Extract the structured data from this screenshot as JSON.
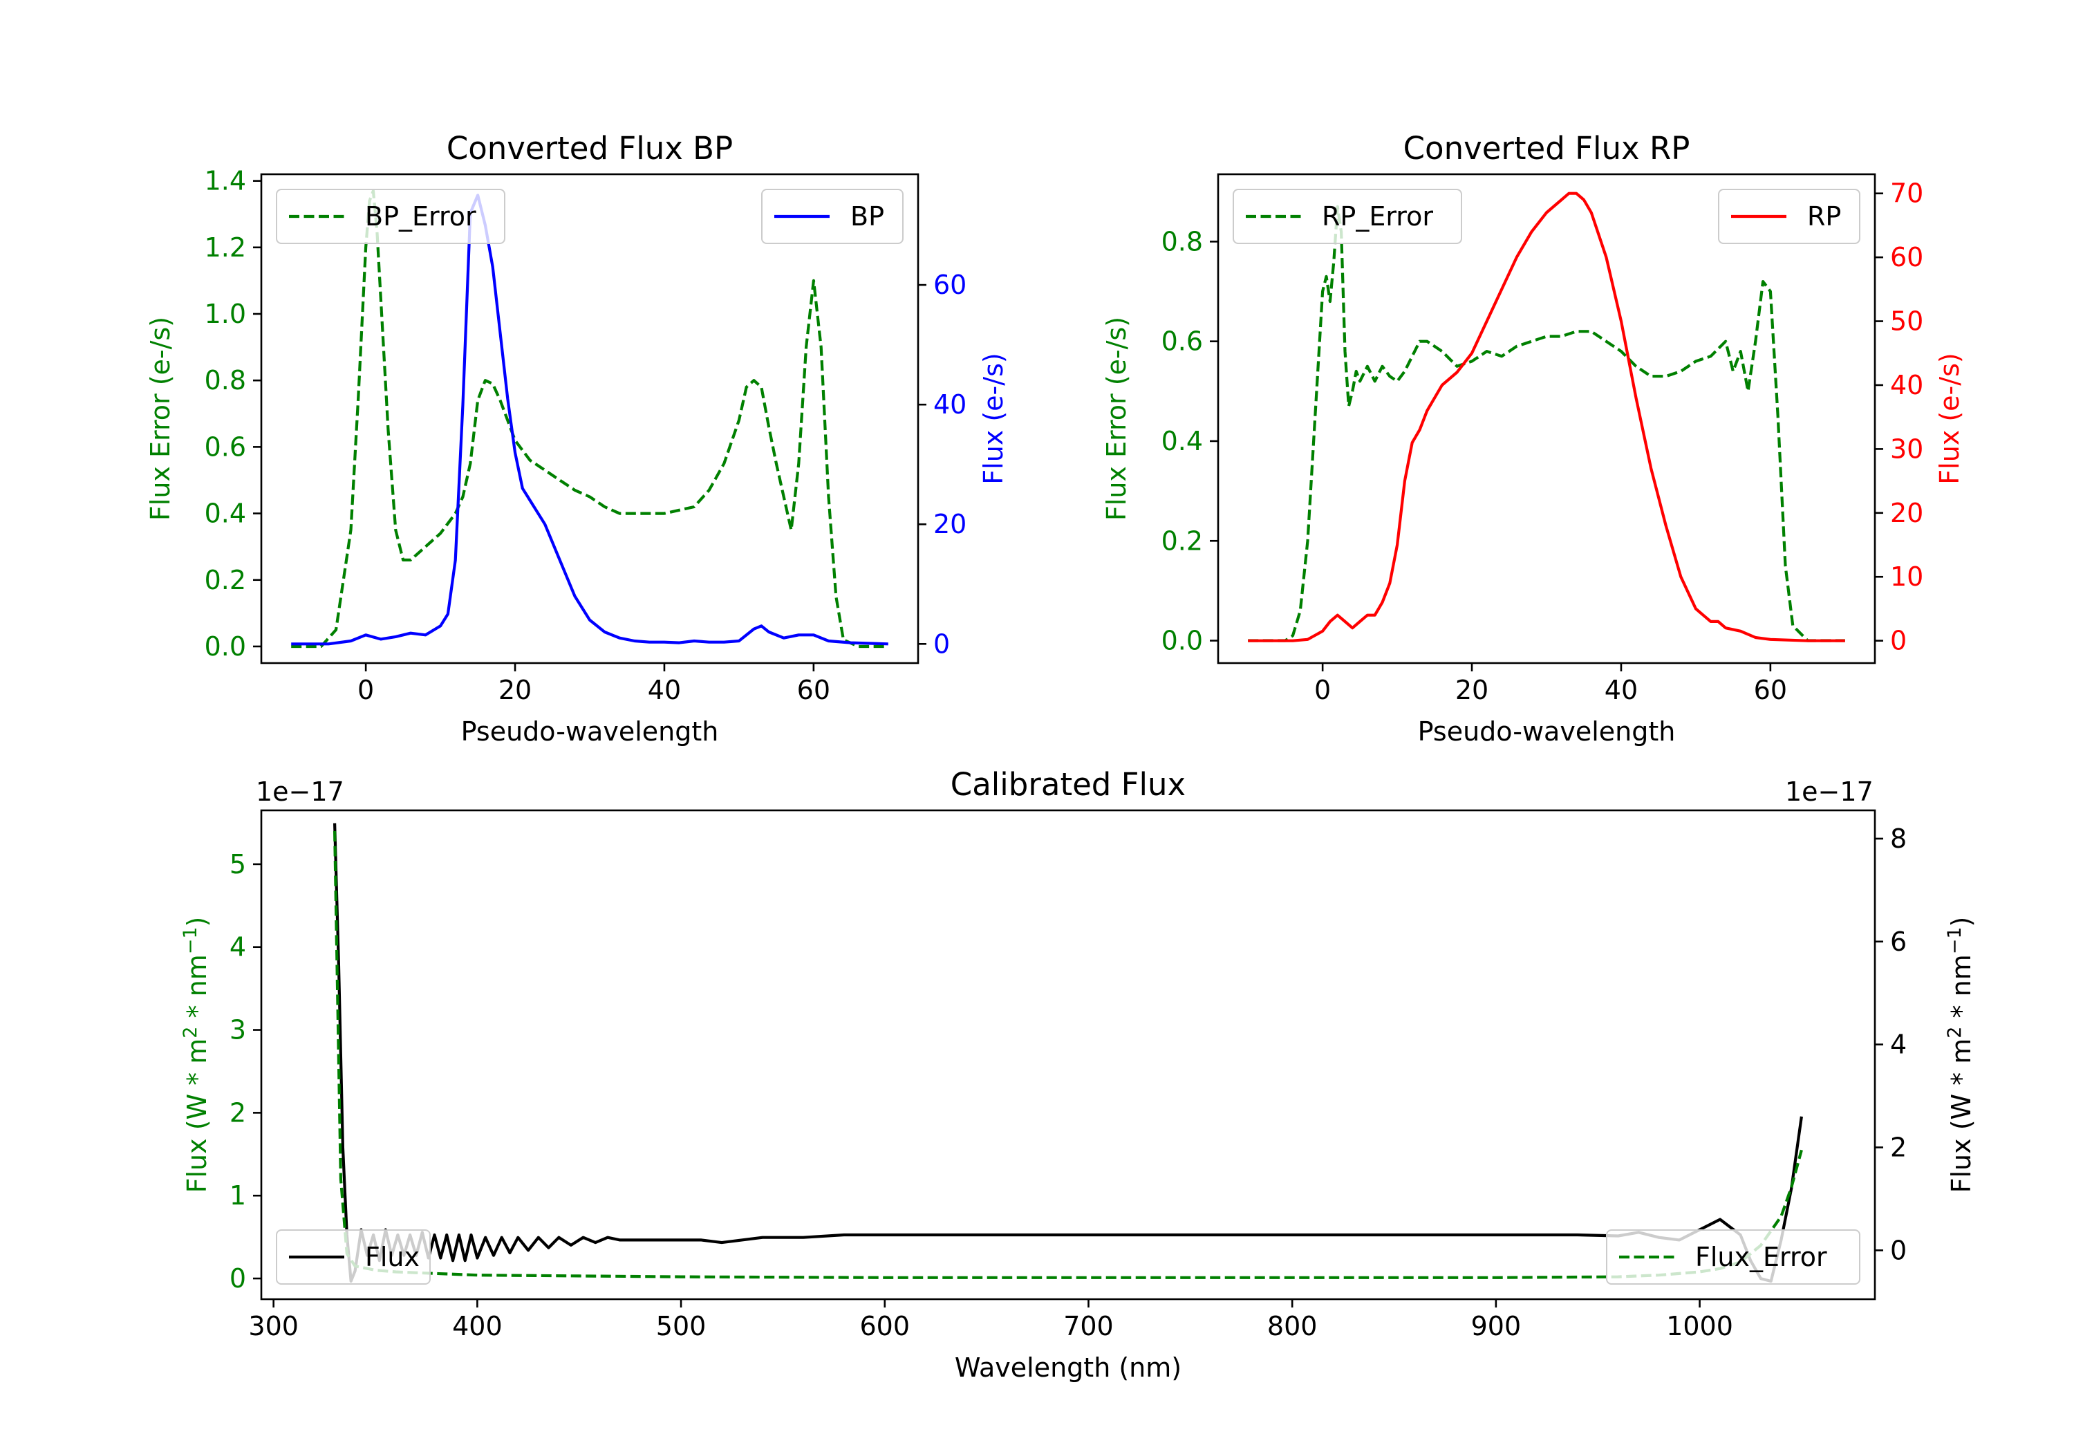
{
  "figure": {
    "background": "#ffffff",
    "colors": {
      "green": "#008000",
      "blue": "#0000ff",
      "red": "#ff0000",
      "black": "#000000"
    }
  },
  "chart_data": [
    {
      "id": "bp",
      "type": "line",
      "title": "Converted Flux BP",
      "xlabel": "Pseudo-wavelength",
      "ylabel_left": "Flux Error (e-/s)",
      "ylabel_right": "Flux (e-/s)",
      "xlim": [
        -14,
        74
      ],
      "ylim_left": [
        -0.05,
        1.42
      ],
      "ylim_right": [
        -3.2,
        78.5
      ],
      "xticks": [
        0,
        20,
        40,
        60
      ],
      "yticks_left": [
        0.0,
        0.2,
        0.4,
        0.6,
        0.8,
        1.0,
        1.2,
        1.4
      ],
      "yticks_left_labels": [
        "0.0",
        "0.2",
        "0.4",
        "0.6",
        "0.8",
        "1.0",
        "1.2",
        "1.4"
      ],
      "yticks_right": [
        0,
        20,
        40,
        60
      ],
      "legend_left": "top-left",
      "legend_right": "top-right",
      "series": [
        {
          "name": "BP_Error",
          "axis": "left",
          "color": "#008000",
          "style": "dashed",
          "x": [
            -10,
            -6,
            -4,
            -2,
            -1,
            0,
            0.5,
            1,
            1.5,
            2,
            3,
            4,
            5,
            6,
            8,
            10,
            12,
            13,
            14,
            15,
            16,
            17,
            18,
            19,
            20,
            22,
            24,
            26,
            28,
            30,
            32,
            34,
            36,
            38,
            40,
            42,
            44,
            46,
            48,
            50,
            51,
            52,
            53,
            54,
            55,
            56,
            57,
            58,
            59,
            60,
            61,
            62,
            63,
            64,
            66,
            70
          ],
          "values": [
            0,
            0,
            0.05,
            0.35,
            0.75,
            1.2,
            1.34,
            1.37,
            1.25,
            1.05,
            0.65,
            0.35,
            0.26,
            0.26,
            0.3,
            0.34,
            0.4,
            0.45,
            0.55,
            0.74,
            0.8,
            0.79,
            0.74,
            0.68,
            0.62,
            0.56,
            0.53,
            0.5,
            0.47,
            0.45,
            0.42,
            0.4,
            0.4,
            0.4,
            0.4,
            0.41,
            0.42,
            0.47,
            0.55,
            0.68,
            0.78,
            0.8,
            0.78,
            0.66,
            0.55,
            0.45,
            0.35,
            0.55,
            0.9,
            1.1,
            0.9,
            0.45,
            0.15,
            0.02,
            0,
            0
          ]
        },
        {
          "name": "BP",
          "axis": "right",
          "color": "#0000ff",
          "style": "solid",
          "x": [
            -10,
            -5,
            -2,
            0,
            2,
            4,
            6,
            8,
            10,
            11,
            12,
            13,
            14,
            15,
            16,
            17,
            18,
            19,
            20,
            21,
            22,
            24,
            26,
            28,
            30,
            32,
            34,
            36,
            38,
            40,
            42,
            44,
            46,
            48,
            50,
            52,
            53,
            54,
            56,
            58,
            60,
            62,
            65,
            70
          ],
          "values": [
            0,
            0,
            0.5,
            1.5,
            0.8,
            1.2,
            1.8,
            1.5,
            3,
            5,
            14,
            40,
            72,
            75,
            70,
            63,
            52,
            41,
            32,
            26,
            24,
            20,
            14,
            8,
            4,
            2,
            1,
            0.5,
            0.3,
            0.3,
            0.2,
            0.5,
            0.3,
            0.3,
            0.5,
            2.5,
            3,
            2,
            1,
            1.5,
            1.5,
            0.5,
            0.2,
            0
          ]
        }
      ]
    },
    {
      "id": "rp",
      "type": "line",
      "title": "Converted Flux RP",
      "xlabel": "Pseudo-wavelength",
      "ylabel_left": "Flux Error (e-/s)",
      "ylabel_right": "Flux (e-/s)",
      "xlim": [
        -14,
        74
      ],
      "ylim_left": [
        -0.045,
        0.935
      ],
      "ylim_right": [
        -3.5,
        73.0
      ],
      "xticks": [
        0,
        20,
        40,
        60
      ],
      "yticks_left": [
        0.0,
        0.2,
        0.4,
        0.6,
        0.8
      ],
      "yticks_left_labels": [
        "0.0",
        "0.2",
        "0.4",
        "0.6",
        "0.8"
      ],
      "yticks_right": [
        0,
        10,
        20,
        30,
        40,
        50,
        60,
        70
      ],
      "legend_left": "top-left",
      "legend_right": "top-right",
      "series": [
        {
          "name": "RP_Error",
          "axis": "left",
          "color": "#008000",
          "style": "dashed",
          "x": [
            -10,
            -5,
            -4,
            -3,
            -2,
            -1,
            0,
            0.5,
            1,
            1.5,
            2,
            2.5,
            3,
            3.5,
            4,
            4.5,
            5,
            6,
            7,
            8,
            9,
            10,
            11,
            12,
            13,
            14,
            16,
            18,
            20,
            22,
            24,
            26,
            28,
            30,
            32,
            34,
            36,
            38,
            40,
            42,
            44,
            46,
            48,
            50,
            52,
            54,
            55,
            56,
            57,
            58,
            59,
            60,
            61,
            62,
            63,
            65,
            70
          ],
          "values": [
            0,
            0,
            0.01,
            0.06,
            0.2,
            0.45,
            0.7,
            0.73,
            0.68,
            0.76,
            0.87,
            0.82,
            0.58,
            0.47,
            0.5,
            0.54,
            0.52,
            0.55,
            0.52,
            0.55,
            0.53,
            0.52,
            0.54,
            0.57,
            0.6,
            0.6,
            0.58,
            0.55,
            0.56,
            0.58,
            0.57,
            0.59,
            0.6,
            0.61,
            0.61,
            0.62,
            0.62,
            0.6,
            0.58,
            0.55,
            0.53,
            0.53,
            0.54,
            0.56,
            0.57,
            0.6,
            0.54,
            0.58,
            0.5,
            0.6,
            0.72,
            0.7,
            0.45,
            0.15,
            0.03,
            0,
            0
          ]
        },
        {
          "name": "RP",
          "axis": "right",
          "color": "#ff0000",
          "style": "solid",
          "x": [
            -10,
            -4,
            -2,
            0,
            1,
            2,
            3,
            4,
            5,
            6,
            7,
            8,
            9,
            10,
            11,
            12,
            13,
            14,
            16,
            18,
            20,
            22,
            24,
            26,
            28,
            30,
            32,
            33,
            34,
            35,
            36,
            38,
            40,
            42,
            44,
            46,
            48,
            50,
            51,
            52,
            53,
            54,
            56,
            58,
            60,
            65,
            70
          ],
          "values": [
            0,
            0,
            0.2,
            1.5,
            3,
            4,
            3,
            2,
            3,
            4,
            4,
            6,
            9,
            15,
            25,
            31,
            33,
            36,
            40,
            42,
            45,
            50,
            55,
            60,
            64,
            67,
            69,
            70,
            70,
            69,
            67,
            60,
            50,
            38,
            27,
            18,
            10,
            5,
            4,
            3,
            3,
            2,
            1.5,
            0.5,
            0.2,
            0,
            0
          ]
        }
      ]
    },
    {
      "id": "calibrated",
      "type": "line",
      "title": "Calibrated Flux",
      "xlabel": "Wavelength (nm)",
      "ylabel_left": "Flux (W * m",
      "ylabel_left_sup1": "2",
      "ylabel_left_mid": " * nm",
      "ylabel_left_sup2": "−1",
      "ylabel_left_end": ")",
      "ylabel_right": "Flux (W * m",
      "ylabel_right_sup1": "2",
      "ylabel_right_mid": " * nm",
      "ylabel_right_sup2": "−1",
      "ylabel_right_end": ")",
      "offset_left": "1e−17",
      "offset_right": "1e−17",
      "xlim": [
        294,
        1086
      ],
      "ylim_left": [
        -0.25,
        5.65
      ],
      "ylim_right": [
        -0.95,
        8.55
      ],
      "xticks": [
        300,
        400,
        500,
        600,
        700,
        800,
        900,
        1000
      ],
      "yticks_left": [
        0,
        1,
        2,
        3,
        4,
        5
      ],
      "yticks_right": [
        0,
        2,
        4,
        6,
        8
      ],
      "legend_left": "bottom-left",
      "legend_right": "bottom-right",
      "series": [
        {
          "name": "Flux",
          "axis": "right",
          "color": "#000000",
          "style": "solid",
          "unit_scale": "1e-17",
          "x": [
            330,
            332,
            334,
            336,
            338,
            340,
            343,
            346,
            349,
            352,
            355,
            358,
            361,
            364,
            367,
            370,
            373,
            376,
            379,
            382,
            385,
            388,
            391,
            394,
            397,
            400,
            404,
            408,
            412,
            416,
            420,
            425,
            430,
            435,
            440,
            446,
            452,
            458,
            464,
            470,
            480,
            490,
            500,
            510,
            520,
            540,
            560,
            580,
            600,
            620,
            640,
            660,
            680,
            700,
            720,
            740,
            760,
            780,
            800,
            820,
            840,
            860,
            880,
            900,
            920,
            940,
            960,
            970,
            980,
            990,
            1000,
            1010,
            1020,
            1025,
            1030,
            1035,
            1040,
            1045,
            1050
          ],
          "values": [
            8.3,
            5.5,
            2.0,
            0.3,
            -0.6,
            -0.4,
            0.4,
            -0.1,
            0.3,
            -0.2,
            0.4,
            -0.1,
            0.3,
            -0.1,
            0.3,
            -0.1,
            0.35,
            -0.15,
            0.3,
            -0.15,
            0.3,
            -0.2,
            0.3,
            -0.2,
            0.3,
            -0.15,
            0.25,
            -0.1,
            0.25,
            -0.05,
            0.25,
            0.0,
            0.25,
            0.05,
            0.25,
            0.1,
            0.25,
            0.15,
            0.25,
            0.2,
            0.2,
            0.2,
            0.2,
            0.2,
            0.15,
            0.25,
            0.25,
            0.3,
            0.3,
            0.3,
            0.3,
            0.3,
            0.3,
            0.3,
            0.3,
            0.3,
            0.3,
            0.3,
            0.3,
            0.3,
            0.3,
            0.3,
            0.3,
            0.3,
            0.3,
            0.3,
            0.28,
            0.35,
            0.25,
            0.2,
            0.4,
            0.6,
            0.3,
            -0.2,
            -0.55,
            -0.6,
            0.2,
            1.2,
            2.6
          ]
        },
        {
          "name": "Flux_Error",
          "axis": "left",
          "color": "#008000",
          "style": "dashed",
          "unit_scale": "1e-17",
          "x": [
            330,
            333,
            336,
            340,
            350,
            360,
            380,
            400,
            450,
            500,
            600,
            700,
            800,
            900,
            960,
            980,
            1000,
            1010,
            1020,
            1030,
            1040,
            1045,
            1050
          ],
          "values": [
            5.4,
            1.2,
            0.3,
            0.15,
            0.1,
            0.08,
            0.06,
            0.04,
            0.03,
            0.02,
            0.01,
            0.01,
            0.01,
            0.01,
            0.02,
            0.04,
            0.08,
            0.12,
            0.2,
            0.4,
            0.75,
            1.1,
            1.55
          ]
        }
      ]
    }
  ]
}
